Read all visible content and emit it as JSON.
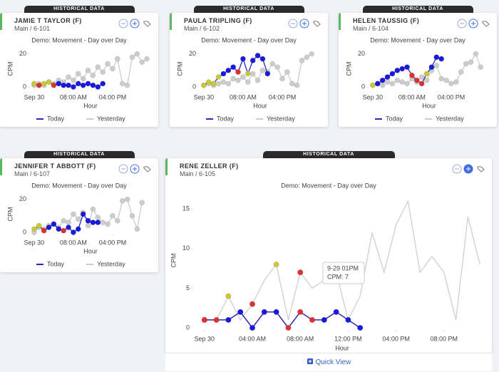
{
  "cards": [
    {
      "tab": "HISTORICAL DATA",
      "name": "JAMIE T TAYLOR (F)",
      "location": "Main / 6-101"
    },
    {
      "tab": "HISTORICAL DATA",
      "name": "PAULA TRIPLING (F)",
      "location": "Main / 6-102"
    },
    {
      "tab": "HISTORICAL DATA",
      "name": "HELEN TAUSSIG (F)",
      "location": "Main / 6-104"
    },
    {
      "tab": "HISTORICAL DATA",
      "name": "JENNIFER T ABBOTT (F)",
      "location": "Main / 6-107"
    },
    {
      "tab": "HISTORICAL DATA",
      "name": "RENE ZELLER (F)",
      "location": "Main / 6-105"
    }
  ],
  "chart_data": [
    {
      "type": "line",
      "title": "Demo: Movement - Day over Day",
      "y_label": "CPM",
      "x_label": "Hour",
      "x": [
        0,
        1,
        2,
        3,
        4,
        5,
        6,
        7,
        8,
        9,
        10,
        11,
        12,
        13,
        14,
        15,
        16,
        17,
        18,
        19,
        20,
        21,
        22,
        23
      ],
      "xlim": [
        -1,
        24
      ],
      "ylim": [
        0,
        22
      ],
      "xticks": [
        {
          "value": 0,
          "label": "Sep 30"
        },
        {
          "value": 8,
          "label": "08:00 AM"
        },
        {
          "value": 16,
          "label": "04:00 PM"
        }
      ],
      "yticks": [
        0,
        20
      ],
      "legend": "bottom",
      "series": [
        {
          "name": "Today",
          "color": "#2a2ab8",
          "values": [
            2,
            1,
            2,
            3,
            1,
            2,
            1,
            1,
            0,
            2,
            1,
            2,
            1,
            0,
            2,
            null,
            null,
            null,
            null,
            null,
            null,
            null,
            null,
            null
          ],
          "marker_colors": [
            "#c8c83a",
            "#e03030",
            "#c8c83a",
            "#c8c83a",
            "#e03030",
            "#1a1adb",
            "#1a1adb",
            "#1a1adb",
            "#1a1adb",
            "#1a1adb",
            "#1a1adb",
            "#1a1adb",
            "#1a1adb",
            "#1a1adb",
            "#1a1adb",
            null,
            null,
            null,
            null,
            null,
            null,
            null,
            null,
            null
          ]
        },
        {
          "name": "Yesterday",
          "color": "#cccccc",
          "markers": true,
          "values": [
            1,
            2,
            1,
            3,
            2,
            4,
            3,
            6,
            4,
            8,
            5,
            10,
            7,
            12,
            9,
            14,
            11,
            17,
            2,
            1,
            18,
            20,
            15,
            17
          ]
        }
      ]
    },
    {
      "type": "line",
      "title": "Demo: Movement - Day over Day",
      "y_label": "CPM",
      "x_label": "Hour",
      "x": [
        0,
        1,
        2,
        3,
        4,
        5,
        6,
        7,
        8,
        9,
        10,
        11,
        12,
        13,
        14,
        15,
        16,
        17,
        18,
        19,
        20,
        21,
        22,
        23
      ],
      "xlim": [
        -1,
        24
      ],
      "ylim": [
        0,
        22
      ],
      "xticks": [
        {
          "value": 0,
          "label": "Sep 30"
        },
        {
          "value": 8,
          "label": "08:00 AM"
        },
        {
          "value": 16,
          "label": "04:00 PM"
        }
      ],
      "yticks": [
        0,
        20
      ],
      "legend": "bottom",
      "series": [
        {
          "name": "Today",
          "color": "#2a2ab8",
          "values": [
            1,
            3,
            2,
            6,
            8,
            10,
            12,
            9,
            17,
            8,
            16,
            19,
            17,
            8,
            null,
            null,
            null,
            null,
            null,
            null,
            null,
            null,
            null,
            null
          ],
          "marker_colors": [
            "#c8c83a",
            "#c8c83a",
            "#c8c83a",
            "#c8c83a",
            "#1a1adb",
            "#1a1adb",
            "#1a1adb",
            "#e03030",
            "#1a1adb",
            "#c8c83a",
            "#1a1adb",
            "#1a1adb",
            "#1a1adb",
            "#1a1adb",
            null,
            null,
            null,
            null,
            null,
            null,
            null,
            null,
            null,
            null
          ]
        },
        {
          "name": "Yesterday",
          "color": "#cccccc",
          "markers": true,
          "values": [
            1,
            2,
            1,
            2,
            3,
            2,
            5,
            4,
            6,
            3,
            8,
            4,
            10,
            9,
            14,
            12,
            5,
            9,
            2,
            1,
            16,
            18,
            20,
            null
          ]
        }
      ]
    },
    {
      "type": "line",
      "title": "Demo: Movement - Day over Day",
      "y_label": "CPM",
      "x_label": "Hour",
      "x": [
        0,
        1,
        2,
        3,
        4,
        5,
        6,
        7,
        8,
        9,
        10,
        11,
        12,
        13,
        14,
        15,
        16,
        17,
        18,
        19,
        20,
        21,
        22,
        23
      ],
      "xlim": [
        -1,
        24
      ],
      "ylim": [
        0,
        22
      ],
      "xticks": [
        {
          "value": 0,
          "label": "Sep 30"
        },
        {
          "value": 8,
          "label": "08:00 AM"
        },
        {
          "value": 16,
          "label": "04:00 PM"
        }
      ],
      "yticks": [
        0,
        20
      ],
      "legend": "bottom",
      "series": [
        {
          "name": "Today",
          "color": "#2a2ab8",
          "values": [
            1,
            2,
            4,
            6,
            8,
            10,
            11,
            12,
            7,
            4,
            2,
            8,
            12,
            18,
            17,
            null,
            null,
            null,
            null,
            null,
            null,
            null,
            null,
            null
          ],
          "marker_colors": [
            "#c8c83a",
            "#1a1adb",
            "#1a1adb",
            "#1a1adb",
            "#1a1adb",
            "#1a1adb",
            "#1a1adb",
            "#1a1adb",
            "#e03030",
            "#e03030",
            "#e03030",
            "#c8c83a",
            "#1a1adb",
            "#1a1adb",
            "#1a1adb",
            null,
            null,
            null,
            null,
            null,
            null,
            null,
            null,
            null
          ]
        },
        {
          "name": "Yesterday",
          "color": "#cccccc",
          "markers": true,
          "values": [
            1,
            2,
            1,
            3,
            2,
            4,
            3,
            2,
            5,
            3,
            6,
            4,
            10,
            13,
            5,
            4,
            2,
            3,
            9,
            14,
            15,
            20,
            12,
            null
          ]
        }
      ]
    },
    {
      "type": "line",
      "title": "Demo: Movement - Day over Day",
      "y_label": "CPM",
      "x_label": "Hour",
      "x": [
        0,
        1,
        2,
        3,
        4,
        5,
        6,
        7,
        8,
        9,
        10,
        11,
        12,
        13,
        14,
        15,
        16,
        17,
        18,
        19,
        20,
        21,
        22,
        23
      ],
      "xlim": [
        -1,
        24
      ],
      "ylim": [
        0,
        22
      ],
      "xticks": [
        {
          "value": 0,
          "label": "Sep 30"
        },
        {
          "value": 8,
          "label": "08:00 AM"
        },
        {
          "value": 16,
          "label": "04:00 PM"
        }
      ],
      "yticks": [
        0,
        20
      ],
      "legend": "bottom",
      "series": [
        {
          "name": "Today",
          "color": "#2a2ab8",
          "values": [
            2,
            4,
            1,
            3,
            5,
            2,
            1,
            3,
            0,
            2,
            11,
            7,
            6,
            6,
            null,
            null,
            null,
            null,
            null,
            null,
            null,
            null,
            null,
            null
          ],
          "marker_colors": [
            "#c8c83a",
            "#c8c83a",
            "#e03030",
            "#1a1adb",
            "#1a1adb",
            "#1a1adb",
            "#e03030",
            "#1a1adb",
            "#1a1adb",
            "#1a1adb",
            "#1a1adb",
            "#1a1adb",
            "#1a1adb",
            "#1a1adb",
            null,
            null,
            null,
            null,
            null,
            null,
            null,
            null,
            null,
            null
          ]
        },
        {
          "name": "Yesterday",
          "color": "#cccccc",
          "markers": true,
          "values": [
            0,
            3,
            2,
            4,
            5,
            3,
            7,
            6,
            11,
            8,
            12,
            4,
            14,
            9,
            6,
            5,
            10,
            7,
            19,
            20,
            10,
            2,
            18,
            null
          ]
        }
      ]
    },
    {
      "type": "line",
      "title": "Demo: Movement - Day over Day",
      "y_label": "CPM",
      "x_label": "Hour",
      "x": [
        0,
        1,
        2,
        3,
        4,
        5,
        6,
        7,
        8,
        9,
        10,
        11,
        12,
        13,
        14,
        15,
        16,
        17,
        18,
        19,
        20,
        21,
        22,
        23
      ],
      "xlim": [
        -1,
        24
      ],
      "ylim": [
        0,
        17
      ],
      "xticks": [
        {
          "value": 0,
          "label": "Sep 30"
        },
        {
          "value": 4,
          "label": "04:00 AM"
        },
        {
          "value": 8,
          "label": "08:00 AM"
        },
        {
          "value": 12,
          "label": "12:00 PM"
        },
        {
          "value": 16,
          "label": "04:00 PM"
        },
        {
          "value": 20,
          "label": "08:00 PM"
        }
      ],
      "yticks": [
        0,
        5,
        10,
        15
      ],
      "series": [
        {
          "color": "#2a2ab8",
          "values": [
            1,
            1,
            1,
            2,
            0,
            2,
            2,
            0,
            2,
            1,
            1,
            2,
            1,
            0,
            null,
            null,
            null,
            null,
            null,
            null,
            null,
            null,
            null,
            null
          ],
          "marker_colors": [
            "#e03030",
            "#e03030",
            "#1a1adb",
            "#1a1adb",
            "#1a1adb",
            "#1a1adb",
            "#1a1adb",
            "#e03030",
            "#e03030",
            "#e03030",
            "#1a1adb",
            "#1a1adb",
            "#1a1adb",
            "#1a1adb",
            null,
            null,
            null,
            null,
            null,
            null,
            null,
            null,
            null,
            null
          ]
        },
        {
          "color": "#d4d4d4",
          "values": [
            1,
            1,
            4,
            1,
            3,
            6,
            8,
            1,
            7,
            5,
            6,
            7,
            1,
            4,
            12,
            7,
            13,
            16,
            7,
            9,
            7,
            1,
            14,
            8
          ],
          "marker_colors": [
            "#e03030",
            null,
            "#c8c83a",
            null,
            "#e03030",
            null,
            "#c8c83a",
            null,
            "#e03030",
            null,
            null,
            null,
            null,
            null,
            null,
            null,
            null,
            null,
            null,
            null,
            null,
            null,
            null,
            null
          ]
        }
      ]
    }
  ],
  "tooltip": {
    "time": "9-29 01PM",
    "value_label": "CPM: 7"
  },
  "quick_view": "Quick View"
}
